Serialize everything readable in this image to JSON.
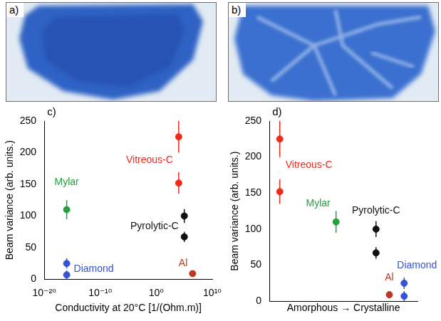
{
  "photos": [
    {
      "label": "a)"
    },
    {
      "label": "b)"
    }
  ],
  "chart_data": [
    {
      "type": "scatter",
      "panel_label": "c)",
      "xlabel": "Conductivity at 20°C [1/(Ohm.m)]",
      "ylabel": "Beam variance (arb. units.)",
      "log": "x",
      "grid": false,
      "xlim": [
        1e-20,
        10000000000.0
      ],
      "xticks": [
        {
          "value": 1e-20,
          "label": "10⁻²⁰"
        },
        {
          "value": 1e-10,
          "label": "10⁻¹⁰"
        },
        {
          "value": 1,
          "label": "10⁰"
        },
        {
          "value": 10000000000.0,
          "label": "10¹⁰"
        }
      ],
      "ylim": [
        0,
        250
      ],
      "yticks": [
        0,
        50,
        100,
        150,
        200,
        250
      ],
      "series": [
        {
          "name": "Vitreous-C",
          "color": "#ee2a1e",
          "marker": "circle",
          "x": [
            10000,
            10000
          ],
          "values": [
            225,
            152
          ],
          "errors": [
            25,
            17
          ]
        },
        {
          "name": "Mylar",
          "color": "#22a040",
          "marker": "circle",
          "x": [
            1e-16
          ],
          "values": [
            110
          ],
          "errors": [
            15
          ]
        },
        {
          "name": "Pyrolytic-C",
          "color": "#111111",
          "marker": "circle",
          "x": [
            100000,
            100000
          ],
          "values": [
            100,
            67
          ],
          "errors": [
            11,
            8
          ]
        },
        {
          "name": "Diamond",
          "color": "#3553d6",
          "marker": "circle",
          "x": [
            1e-16,
            1e-16
          ],
          "values": [
            25,
            7
          ],
          "errors": [
            8,
            7
          ]
        },
        {
          "name": "Al",
          "color": "#b83a26",
          "marker": "circle",
          "x": [
            3000000
          ],
          "values": [
            9
          ],
          "errors": [
            5
          ]
        }
      ]
    },
    {
      "type": "scatter",
      "panel_label": "d)",
      "xlabel": "Amorphous → Crystalline",
      "ylabel": "Beam variance (arb. units.)",
      "grid": false,
      "tick_labels": "y",
      "xlim": [
        0,
        1
      ],
      "ylim": [
        0,
        250
      ],
      "yticks": [
        0,
        50,
        100,
        150,
        200,
        250
      ],
      "series": [
        {
          "name": "Vitreous-C",
          "color": "#ee2a1e",
          "marker": "circle",
          "x": [
            0.07,
            0.07
          ],
          "values": [
            225,
            152
          ],
          "errors": [
            25,
            17
          ]
        },
        {
          "name": "Mylar",
          "color": "#22a040",
          "marker": "circle",
          "x": [
            0.45
          ],
          "values": [
            110
          ],
          "errors": [
            15
          ]
        },
        {
          "name": "Pyrolytic-C",
          "color": "#111111",
          "marker": "circle",
          "x": [
            0.72,
            0.72
          ],
          "values": [
            100,
            67
          ],
          "errors": [
            11,
            8
          ]
        },
        {
          "name": "Diamond",
          "color": "#3553d6",
          "marker": "circle",
          "x": [
            0.91,
            0.91
          ],
          "values": [
            25,
            7
          ],
          "errors": [
            8,
            7
          ]
        },
        {
          "name": "Al",
          "color": "#b83a26",
          "marker": "circle",
          "x": [
            0.81
          ],
          "values": [
            9
          ],
          "errors": [
            5
          ]
        }
      ]
    }
  ]
}
